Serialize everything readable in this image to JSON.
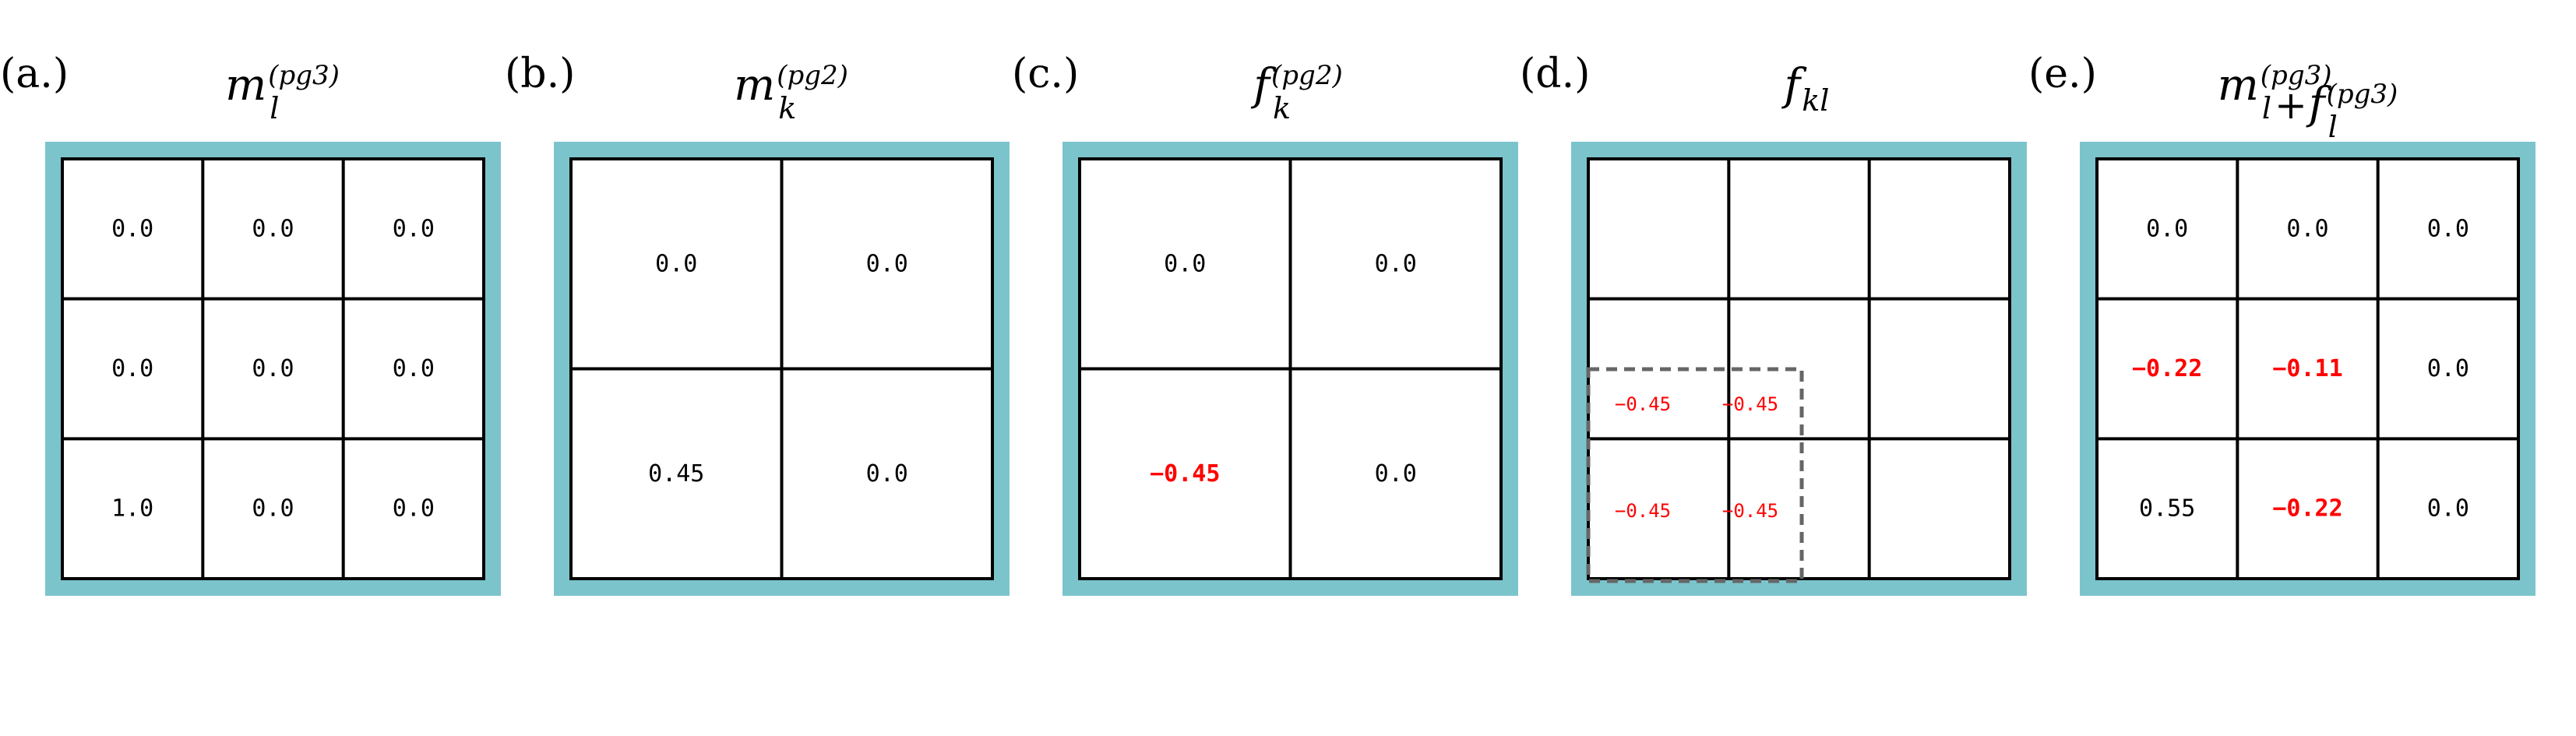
{
  "colors": {
    "frame": "#7cc4cc",
    "grid": "#000000",
    "normal_text": "#000000",
    "highlight_text": "#ff0000",
    "dashed_box": "#666666"
  },
  "panels": [
    {
      "label": "(a.)",
      "title": {
        "main": "m",
        "sub": "l",
        "sup": "(pg3)"
      },
      "grid_size": 3,
      "cells": [
        {
          "text": "0.0",
          "color": "normal"
        },
        {
          "text": "0.0",
          "color": "normal"
        },
        {
          "text": "0.0",
          "color": "normal"
        },
        {
          "text": "0.0",
          "color": "normal"
        },
        {
          "text": "0.0",
          "color": "normal"
        },
        {
          "text": "0.0",
          "color": "normal"
        },
        {
          "text": "1.0",
          "color": "normal"
        },
        {
          "text": "0.0",
          "color": "normal"
        },
        {
          "text": "0.0",
          "color": "normal"
        }
      ]
    },
    {
      "label": "(b.)",
      "title": {
        "main": "m",
        "sub": "k",
        "sup": "(pg2)"
      },
      "grid_size": 2,
      "cells": [
        {
          "text": "0.0",
          "color": "normal"
        },
        {
          "text": "0.0",
          "color": "normal"
        },
        {
          "text": "0.45",
          "color": "normal"
        },
        {
          "text": "0.0",
          "color": "normal"
        }
      ]
    },
    {
      "label": "(c.)",
      "title": {
        "main": "f",
        "sub": "k",
        "sup": "(pg2)"
      },
      "grid_size": 2,
      "cells": [
        {
          "text": "0.0",
          "color": "normal"
        },
        {
          "text": "0.0",
          "color": "normal"
        },
        {
          "text": "−0.45",
          "color": "highlight"
        },
        {
          "text": "0.0",
          "color": "normal"
        }
      ]
    },
    {
      "label": "(d.)",
      "title": {
        "main": "f",
        "sub": "kl",
        "sup": ""
      },
      "grid_size": 3,
      "cells": [
        {
          "text": "",
          "color": "normal"
        },
        {
          "text": "",
          "color": "normal"
        },
        {
          "text": "",
          "color": "normal"
        },
        {
          "text": "",
          "color": "normal"
        },
        {
          "text": "",
          "color": "normal"
        },
        {
          "text": "",
          "color": "normal"
        },
        {
          "text": "",
          "color": "normal"
        },
        {
          "text": "",
          "color": "normal"
        },
        {
          "text": "",
          "color": "normal"
        }
      ],
      "subcells": [
        {
          "text": "−0.45"
        },
        {
          "text": "−0.45"
        },
        {
          "text": "−0.45"
        },
        {
          "text": "−0.45"
        }
      ]
    },
    {
      "label": "(e.)",
      "title": {
        "main": "m",
        "sub": "l",
        "sup": "(pg3)",
        "op": "+",
        "main2": "f",
        "sub2": "l",
        "sup2": "(pg3)"
      },
      "grid_size": 3,
      "cells": [
        {
          "text": "0.0",
          "color": "normal"
        },
        {
          "text": "0.0",
          "color": "normal"
        },
        {
          "text": "0.0",
          "color": "normal"
        },
        {
          "text": "−0.22",
          "color": "highlight"
        },
        {
          "text": "−0.11",
          "color": "highlight"
        },
        {
          "text": "0.0",
          "color": "normal"
        },
        {
          "text": "0.55",
          "color": "normal"
        },
        {
          "text": "−0.22",
          "color": "highlight"
        },
        {
          "text": "0.0",
          "color": "normal"
        }
      ]
    }
  ]
}
